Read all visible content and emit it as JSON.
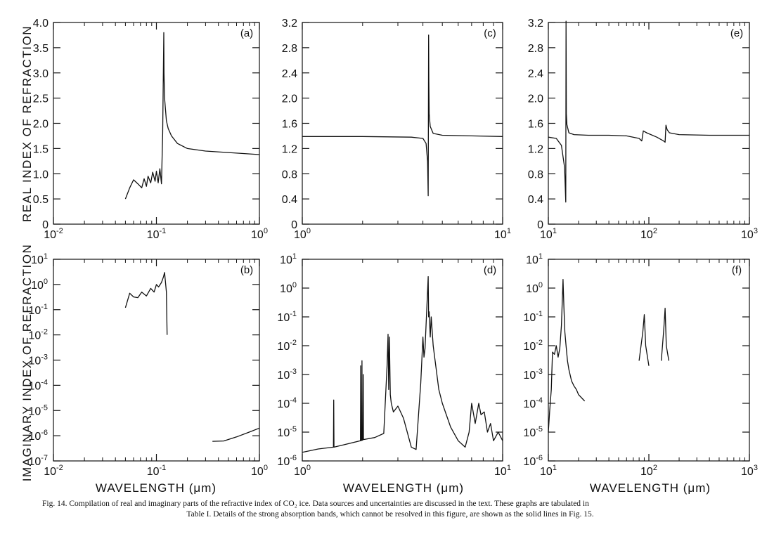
{
  "labels": {
    "ylabel_top": "REAL  INDEX  OF  REFRACTION",
    "ylabel_bottom": "IMAGINARY  INDEX  OF  REFRACTION",
    "xlabel": "WAVELENGTH (μm)"
  },
  "caption": {
    "line1": "Fig. 14.   Compilation of real and imaginary parts of the refractive index of CO₂ ice.   Data sources and uncertainties are discussed in the text.   These graphs are tabulated in",
    "line2": "Table I.   Details of the strong absorption bands, which cannot be resolved in this figure, are shown as the solid lines in Fig. 15."
  },
  "chart_data": [
    {
      "panel": "(a)",
      "type": "line",
      "xscale": "log",
      "yscale": "linear",
      "xlim": [
        0.01,
        1
      ],
      "ylim": [
        0,
        4.0
      ],
      "xticks": [
        {
          "b": "10",
          "e": "-2"
        },
        {
          "b": "10",
          "e": "-1"
        },
        {
          "b": "10",
          "e": "0"
        }
      ],
      "yticks": [
        "0",
        "0.5",
        "1.0",
        "1.5",
        "2.0",
        "2.5",
        "3.0",
        "3.5",
        "4.0"
      ],
      "ytick_values": [
        0,
        0.5,
        1.0,
        1.5,
        2.0,
        2.5,
        3.0,
        3.5,
        4.0
      ],
      "series": [
        {
          "x": [
            0.05,
            0.055,
            0.06,
            0.066,
            0.072,
            0.076,
            0.08,
            0.083,
            0.088,
            0.092,
            0.097,
            0.1,
            0.104,
            0.108,
            0.112,
            0.115,
            0.118,
            0.1185,
            0.12,
            0.125,
            0.13,
            0.14,
            0.16,
            0.2,
            0.3,
            0.5,
            1.0
          ],
          "y": [
            0.5,
            0.72,
            0.88,
            0.8,
            0.72,
            0.9,
            0.75,
            0.95,
            0.82,
            1.03,
            0.85,
            1.05,
            0.82,
            1.1,
            0.8,
            1.8,
            3.8,
            3.0,
            2.5,
            2.05,
            1.9,
            1.75,
            1.6,
            1.5,
            1.45,
            1.42,
            1.38
          ]
        }
      ]
    },
    {
      "panel": "(c)",
      "type": "line",
      "xscale": "log",
      "yscale": "linear",
      "xlim": [
        1,
        10
      ],
      "ylim": [
        0,
        3.2
      ],
      "xticks": [
        {
          "b": "10",
          "e": "0"
        },
        {
          "b": "10",
          "e": "1"
        }
      ],
      "yticks": [
        "0",
        "0.4",
        "0.8",
        "1.2",
        "1.6",
        "2.0",
        "2.4",
        "2.8",
        "3.2"
      ],
      "ytick_values": [
        0,
        0.4,
        0.8,
        1.2,
        1.6,
        2.0,
        2.4,
        2.8,
        3.2
      ],
      "series": [
        {
          "x": [
            1.0,
            2.0,
            3.5,
            4.0,
            4.15,
            4.22,
            4.25,
            4.27,
            4.28,
            4.3,
            4.35,
            4.5,
            5.0,
            7.0,
            10.0
          ],
          "y": [
            1.39,
            1.39,
            1.38,
            1.36,
            1.28,
            1.0,
            0.45,
            3.0,
            2.3,
            1.75,
            1.55,
            1.44,
            1.41,
            1.4,
            1.39
          ]
        }
      ]
    },
    {
      "panel": "(e)",
      "type": "line",
      "xscale": "log",
      "yscale": "linear",
      "xlim": [
        10,
        1000
      ],
      "ylim": [
        0,
        3.2
      ],
      "xticks": [
        {
          "b": "10",
          "e": "1"
        },
        {
          "b": "10",
          "e": "2"
        },
        {
          "b": "10",
          "e": "3"
        }
      ],
      "yticks": [
        "0",
        "0.4",
        "0.8",
        "1.2",
        "1.6",
        "2.0",
        "2.4",
        "2.8",
        "3.2"
      ],
      "ytick_values": [
        0,
        0.4,
        0.8,
        1.2,
        1.6,
        2.0,
        2.4,
        2.8,
        3.2
      ],
      "series": [
        {
          "x": [
            10,
            12,
            13.5,
            14.5,
            14.9,
            15.0,
            15.1,
            15.3,
            16,
            18,
            25,
            40,
            60,
            80,
            85,
            88,
            95,
            120,
            140,
            145,
            148,
            152,
            160,
            200,
            400,
            1000
          ],
          "y": [
            1.38,
            1.36,
            1.25,
            0.9,
            0.35,
            3.22,
            1.75,
            1.58,
            1.45,
            1.42,
            1.41,
            1.41,
            1.4,
            1.36,
            1.32,
            1.48,
            1.45,
            1.38,
            1.32,
            1.3,
            1.57,
            1.5,
            1.45,
            1.42,
            1.41,
            1.41
          ]
        }
      ]
    },
    {
      "panel": "(b)",
      "type": "line",
      "xscale": "log",
      "yscale": "log",
      "xlim": [
        0.01,
        1
      ],
      "ylim": [
        1e-07,
        10
      ],
      "xticks": [
        {
          "b": "10",
          "e": "-2"
        },
        {
          "b": "10",
          "e": "-1"
        },
        {
          "b": "10",
          "e": "0"
        }
      ],
      "yticks": [
        {
          "b": "10",
          "e": "-7"
        },
        {
          "b": "10",
          "e": "-6"
        },
        {
          "b": "10",
          "e": "-5"
        },
        {
          "b": "10",
          "e": "-4"
        },
        {
          "b": "10",
          "e": "-3"
        },
        {
          "b": "10",
          "e": "-2"
        },
        {
          "b": "10",
          "e": "-1"
        },
        {
          "b": "10",
          "e": "0"
        },
        {
          "b": "10",
          "e": "1"
        }
      ],
      "series": [
        {
          "x": [
            0.05,
            0.055,
            0.06,
            0.066,
            0.072,
            0.08,
            0.088,
            0.095,
            0.1,
            0.105,
            0.112,
            0.117,
            0.12,
            0.125,
            0.127
          ],
          "y": [
            0.12,
            0.45,
            0.32,
            0.3,
            0.5,
            0.35,
            0.7,
            0.5,
            1.0,
            0.8,
            1.2,
            2.0,
            3.0,
            0.5,
            0.01
          ]
        },
        {
          "x": [
            0.35,
            0.45,
            0.6,
            0.8,
            1.0
          ],
          "y": [
            6e-07,
            6.2e-07,
            9e-07,
            1.4e-06,
            2e-06
          ]
        }
      ]
    },
    {
      "panel": "(d)",
      "type": "line",
      "xscale": "log",
      "yscale": "log",
      "xlim": [
        1,
        10
      ],
      "ylim": [
        1e-06,
        10
      ],
      "xticks": [
        {
          "b": "10",
          "e": "0"
        },
        {
          "b": "10",
          "e": "1"
        }
      ],
      "yticks": [
        {
          "b": "10",
          "e": "-6"
        },
        {
          "b": "10",
          "e": "-5"
        },
        {
          "b": "10",
          "e": "-4"
        },
        {
          "b": "10",
          "e": "-3"
        },
        {
          "b": "10",
          "e": "-2"
        },
        {
          "b": "10",
          "e": "-1"
        },
        {
          "b": "10",
          "e": "0"
        },
        {
          "b": "10",
          "e": "1"
        }
      ],
      "series": [
        {
          "x": [
            1.0,
            1.2,
            1.43,
            1.435,
            1.44,
            1.6,
            1.95,
            1.955,
            1.96,
            1.98,
            1.985,
            1.99,
            2.01,
            2.015,
            2.02,
            2.3,
            2.55,
            2.65,
            2.68,
            2.7,
            2.72,
            2.75,
            2.78,
            2.85,
            3.0,
            3.2,
            3.5,
            3.7,
            3.9,
            4.0,
            4.05,
            4.1,
            4.25,
            4.27,
            4.3,
            4.35,
            4.4,
            4.5,
            4.8,
            5.0,
            5.5,
            6.0,
            6.5,
            6.8,
            7.0,
            7.3,
            7.6,
            7.8,
            8.1,
            8.4,
            8.7,
            9.0,
            9.5,
            10.0
          ],
          "y": [
            2e-06,
            2.6e-06,
            3e-06,
            0.00013,
            3e-06,
            3.6e-06,
            5e-06,
            0.002,
            5e-06,
            5.2e-06,
            0.003,
            5.2e-06,
            5.5e-06,
            0.001,
            5.5e-06,
            6.5e-06,
            9e-06,
            0.002,
            0.025,
            0.0003,
            0.02,
            0.0002,
            0.0001,
            5e-05,
            8e-05,
            3e-05,
            3e-06,
            2.5e-06,
            0.0005,
            0.02,
            0.004,
            0.008,
            2.5,
            0.1,
            0.15,
            0.02,
            0.1,
            0.01,
            0.0003,
            0.0001,
            1.5e-05,
            5e-06,
            3e-06,
            1e-05,
            0.0001,
            2e-05,
            0.0001,
            4e-05,
            5e-05,
            1e-05,
            2e-05,
            5e-06,
            1e-05,
            5e-06
          ]
        }
      ]
    },
    {
      "panel": "(f)",
      "type": "line",
      "xscale": "log",
      "yscale": "log",
      "xlim": [
        10,
        1000
      ],
      "ylim": [
        1e-06,
        10
      ],
      "xticks": [
        {
          "b": "10",
          "e": "1"
        },
        {
          "b": "10",
          "e": "2"
        },
        {
          "b": "10",
          "e": "3"
        }
      ],
      "yticks": [
        {
          "b": "10",
          "e": "-6"
        },
        {
          "b": "10",
          "e": "-5"
        },
        {
          "b": "10",
          "e": "-4"
        },
        {
          "b": "10",
          "e": "-3"
        },
        {
          "b": "10",
          "e": "-2"
        },
        {
          "b": "10",
          "e": "-1"
        },
        {
          "b": "10",
          "e": "0"
        },
        {
          "b": "10",
          "e": "1"
        }
      ],
      "series": [
        {
          "x": [
            10.0,
            10.3,
            10.7,
            11.0,
            11.5,
            12.0,
            12.5,
            13.0,
            13.5,
            14.0,
            14.3,
            14.6,
            15.0,
            15.5,
            16.0,
            17.0,
            18.0,
            19.0,
            20.0,
            22.0,
            23.0
          ],
          "y": [
            1e-05,
            5e-05,
            0.0003,
            0.006,
            0.005,
            0.01,
            0.004,
            0.008,
            0.05,
            2.0,
            0.2,
            0.03,
            0.01,
            0.003,
            0.0015,
            0.0006,
            0.0004,
            0.0003,
            0.0002,
            0.00014,
            0.00012
          ]
        },
        {
          "x": [
            80,
            87,
            90,
            93,
            100
          ],
          "y": [
            0.003,
            0.03,
            0.12,
            0.01,
            0.002
          ]
        },
        {
          "x": [
            133,
            141,
            145,
            149,
            158
          ],
          "y": [
            0.003,
            0.04,
            0.2,
            0.01,
            0.003
          ]
        }
      ]
    }
  ]
}
